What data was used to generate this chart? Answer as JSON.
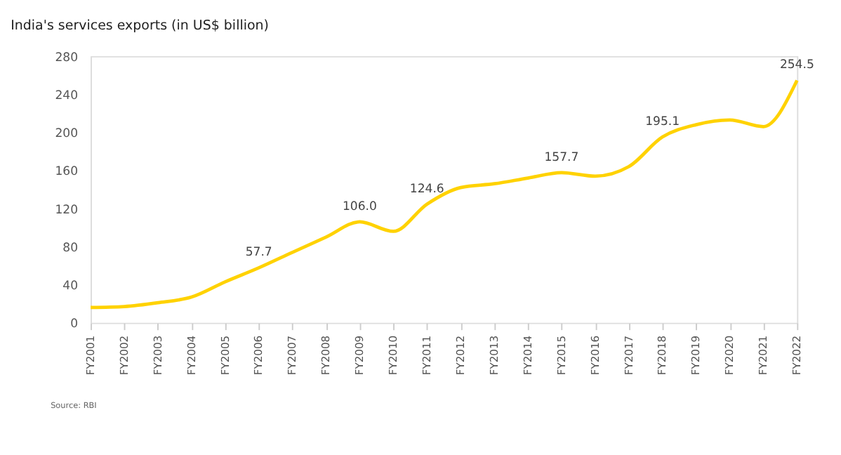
{
  "chart_data": {
    "type": "line",
    "title": "India's services exports (in US$ billion)",
    "categories": [
      "FY2001",
      "FY2002",
      "FY2003",
      "FY2004",
      "FY2005",
      "FY2006",
      "FY2007",
      "FY2008",
      "FY2009",
      "FY2010",
      "FY2011",
      "FY2012",
      "FY2013",
      "FY2014",
      "FY2015",
      "FY2016",
      "FY2017",
      "FY2018",
      "FY2019",
      "FY2020",
      "FY2021",
      "FY2022"
    ],
    "series": [
      {
        "color": "#ffd200",
        "values": [
          16,
          17,
          21,
          27,
          43,
          57.7,
          74,
          90,
          106.0,
          96,
          124.6,
          142,
          146,
          152,
          157.7,
          154,
          164,
          195.1,
          208,
          213,
          206,
          254.5
        ],
        "value_labels": [
          null,
          null,
          null,
          null,
          null,
          "57.7",
          null,
          null,
          "106.0",
          null,
          "124.6",
          null,
          null,
          null,
          "157.7",
          null,
          null,
          "195.1",
          null,
          null,
          null,
          "254.5"
        ]
      }
    ],
    "ylim": [
      0,
      280
    ],
    "yticks": [
      0,
      40,
      80,
      120,
      160,
      200,
      240,
      280
    ],
    "grid": false,
    "marker": "none",
    "line_style": "solid",
    "annotations": [
      "Source: RBI"
    ]
  }
}
